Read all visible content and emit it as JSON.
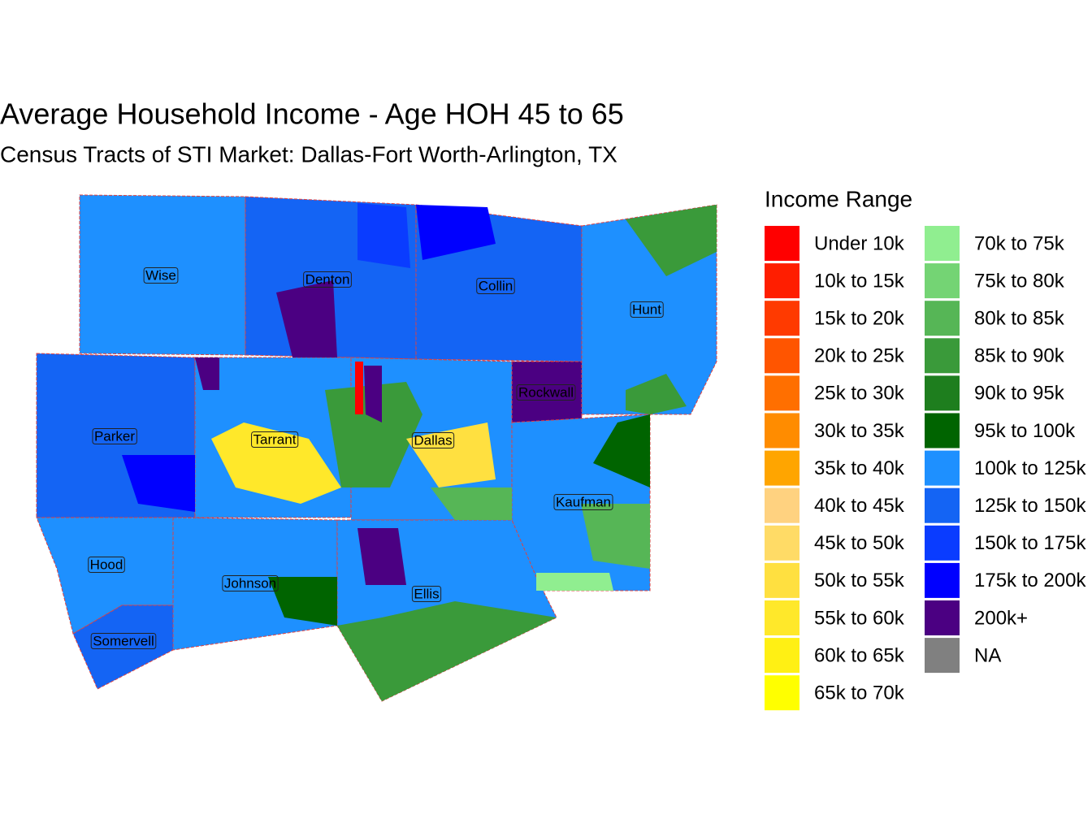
{
  "title": "Average Household Income - Age HOH 45 to 65",
  "subtitle": "Census Tracts of STI Market: Dallas-Fort Worth-Arlington, TX",
  "legend": {
    "title": "Income Range",
    "items": [
      {
        "label": "Under 10k",
        "color": "#FF0000"
      },
      {
        "label": "10k to 15k",
        "color": "#FF1E00"
      },
      {
        "label": "15k to 20k",
        "color": "#FF3A00"
      },
      {
        "label": "20k to 25k",
        "color": "#FF5500"
      },
      {
        "label": "25k to 30k",
        "color": "#FF6F00"
      },
      {
        "label": "30k to 35k",
        "color": "#FF8C00"
      },
      {
        "label": "35k to 40k",
        "color": "#FFA500"
      },
      {
        "label": "40k to 45k",
        "color": "#FFD280"
      },
      {
        "label": "45k to 50k",
        "color": "#FFDB66"
      },
      {
        "label": "50k to 55k",
        "color": "#FFE040"
      },
      {
        "label": "55k to 60k",
        "color": "#FFE82A"
      },
      {
        "label": "60k to 65k",
        "color": "#FFF014"
      },
      {
        "label": "65k to 70k",
        "color": "#FFFF00"
      },
      {
        "label": "70k to 75k",
        "color": "#90EE90"
      },
      {
        "label": "75k to 80k",
        "color": "#74D474"
      },
      {
        "label": "80k to 85k",
        "color": "#56B656"
      },
      {
        "label": "85k to 90k",
        "color": "#3A9A3A"
      },
      {
        "label": "90k to 95k",
        "color": "#1E7E1E"
      },
      {
        "label": "95k to 100k",
        "color": "#006400"
      },
      {
        "label": "100k to 125k",
        "color": "#1E90FF"
      },
      {
        "label": "125k to 150k",
        "color": "#1464F4"
      },
      {
        "label": "150k to 175k",
        "color": "#0A3CFF"
      },
      {
        "label": "175k to 200k",
        "color": "#0000FF"
      },
      {
        "label": "200k+",
        "color": "#4B0082"
      },
      {
        "label": "NA",
        "color": "#808080"
      }
    ]
  },
  "counties": [
    "Wise",
    "Denton",
    "Collin",
    "Hunt",
    "Rockwall",
    "Parker",
    "Tarrant",
    "Dallas",
    "Kaufman",
    "Hood",
    "Johnson",
    "Ellis",
    "Somervell"
  ]
}
